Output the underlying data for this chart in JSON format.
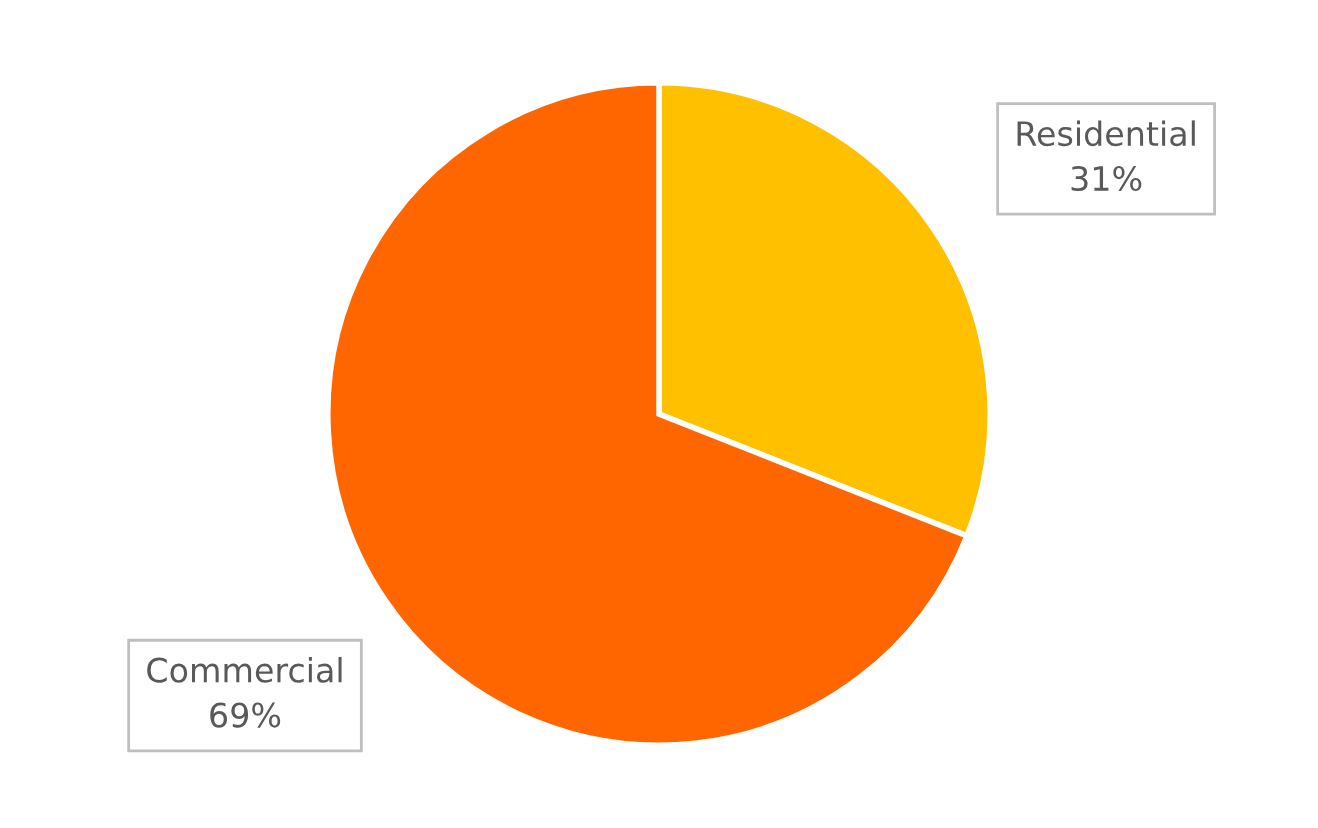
{
  "chart_data": {
    "type": "pie",
    "categories": [
      "Residential",
      "Commercial"
    ],
    "values": [
      31,
      69
    ],
    "value_labels": [
      "31%",
      "69%"
    ],
    "colors": [
      "#ffc000",
      "#ff6600"
    ],
    "legend": false
  }
}
